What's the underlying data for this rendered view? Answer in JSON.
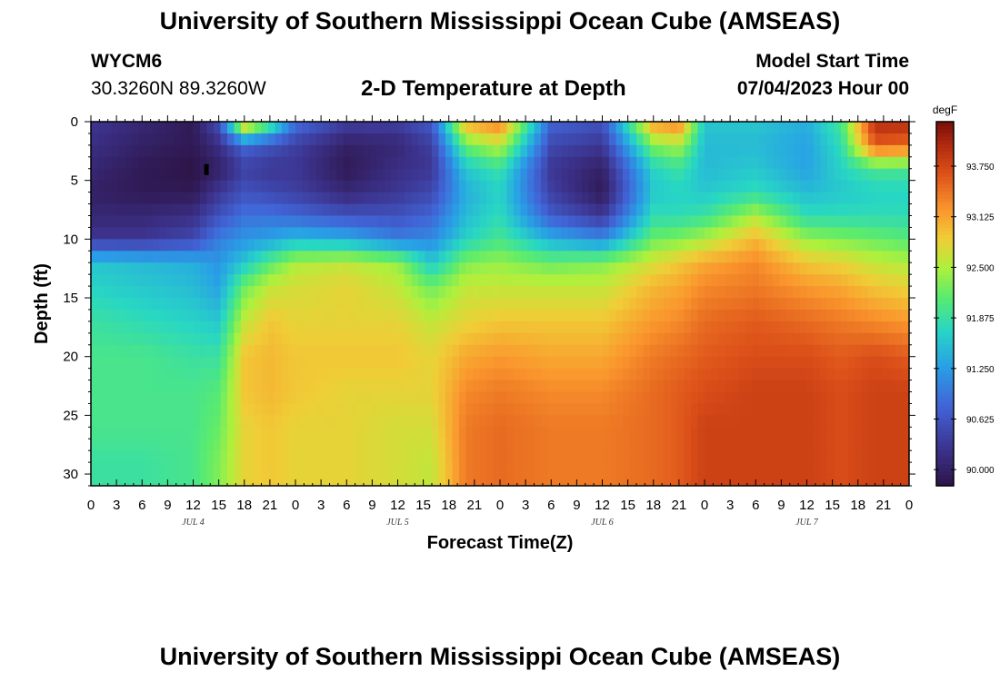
{
  "header": {
    "title": "University of Southern Mississippi Ocean Cube (AMSEAS)",
    "station": "WYCM6",
    "coords": "30.3260N  89.3260W",
    "plot_title": "2-D Temperature at Depth",
    "model_start_label": "Model Start Time",
    "model_start_value": "07/04/2023 Hour 00"
  },
  "footer": {
    "title": "University of Southern Mississippi Ocean Cube (AMSEAS)"
  },
  "colors": {
    "background": "#ffffff",
    "frame": "#000000"
  },
  "chart_data": {
    "type": "heatmap",
    "xlabel": "Forecast Time(Z)",
    "ylabel": "Depth (ft)",
    "x_ticks": [
      "0",
      "3",
      "6",
      "9",
      "12",
      "15",
      "18",
      "21",
      "0",
      "3",
      "6",
      "9",
      "12",
      "15",
      "18",
      "21",
      "0",
      "3",
      "6",
      "9",
      "12",
      "15",
      "18",
      "21",
      "0",
      "3",
      "6",
      "9",
      "12",
      "15",
      "18",
      "21",
      "0"
    ],
    "x_range_hours": [
      0,
      96
    ],
    "day_labels": [
      {
        "label": "JUL 4",
        "hour": 12
      },
      {
        "label": "JUL 5",
        "hour": 36
      },
      {
        "label": "JUL 6",
        "hour": 60
      },
      {
        "label": "JUL 7",
        "hour": 84
      }
    ],
    "y_ticks": [
      "0",
      "5",
      "10",
      "15",
      "20",
      "25",
      "30"
    ],
    "y_range_ft": [
      0,
      31
    ],
    "y_inverted": true,
    "colorbar": {
      "unit": "degF",
      "ticks": [
        "93.750",
        "93.125",
        "92.500",
        "91.875",
        "91.250",
        "90.625",
        "90.000"
      ],
      "tick_values": [
        93.75,
        93.125,
        92.5,
        91.875,
        91.25,
        90.625,
        90.0
      ],
      "range": [
        89.8,
        94.3
      ]
    },
    "grid_hours": [
      0,
      6,
      12,
      15,
      18,
      21,
      24,
      30,
      36,
      40,
      44,
      48,
      54,
      60,
      66,
      69,
      72,
      78,
      84,
      88,
      92,
      96
    ],
    "grid_depths_ft": [
      0,
      2,
      4,
      6,
      8,
      10,
      12,
      14,
      17,
      20,
      23,
      26,
      29,
      31
    ],
    "columns": [
      [
        90.3,
        90.2,
        90.1,
        90.0,
        90.1,
        90.3,
        91.6,
        91.7,
        91.9,
        92.0,
        92.0,
        92.0,
        91.9,
        91.9
      ],
      [
        90.1,
        90.0,
        89.9,
        89.9,
        90.1,
        90.3,
        91.5,
        91.6,
        91.8,
        92.0,
        92.0,
        92.0,
        91.9,
        91.9
      ],
      [
        89.9,
        89.9,
        89.8,
        89.9,
        90.2,
        90.5,
        91.4,
        91.5,
        91.7,
        91.9,
        92.0,
        92.0,
        92.0,
        92.0
      ],
      [
        90.6,
        90.2,
        90.0,
        90.3,
        90.6,
        91.0,
        91.2,
        91.3,
        91.6,
        91.9,
        92.1,
        92.2,
        92.3,
        92.3
      ],
      [
        93.2,
        90.8,
        90.4,
        90.6,
        90.9,
        91.2,
        91.6,
        92.2,
        92.6,
        92.9,
        92.9,
        92.8,
        92.8,
        92.8
      ],
      [
        92.2,
        90.6,
        90.3,
        90.5,
        90.9,
        91.3,
        92.1,
        92.6,
        92.9,
        93.0,
        93.0,
        92.9,
        92.9,
        92.9
      ],
      [
        90.9,
        90.4,
        90.3,
        90.4,
        90.8,
        91.5,
        92.5,
        92.7,
        92.8,
        92.9,
        92.9,
        92.8,
        92.8,
        92.8
      ],
      [
        90.4,
        90.0,
        89.9,
        90.1,
        90.6,
        91.4,
        92.6,
        92.8,
        92.8,
        92.9,
        92.8,
        92.8,
        92.8,
        92.8
      ],
      [
        90.4,
        90.1,
        90.2,
        90.3,
        90.6,
        91.0,
        92.4,
        92.6,
        92.8,
        92.9,
        92.8,
        92.7,
        92.7,
        92.7
      ],
      [
        90.7,
        90.4,
        90.3,
        90.5,
        90.8,
        91.1,
        91.6,
        92.2,
        92.6,
        92.8,
        92.8,
        92.7,
        92.6,
        92.6
      ],
      [
        93.1,
        92.2,
        91.6,
        91.4,
        91.5,
        91.7,
        92.3,
        92.6,
        92.8,
        93.1,
        93.3,
        93.4,
        93.4,
        93.4
      ],
      [
        93.4,
        92.6,
        91.9,
        91.7,
        91.8,
        92.0,
        92.4,
        92.6,
        92.9,
        93.2,
        93.4,
        93.5,
        93.5,
        93.5
      ],
      [
        90.8,
        90.5,
        90.3,
        90.4,
        90.7,
        91.4,
        92.2,
        92.6,
        92.9,
        93.1,
        93.3,
        93.4,
        93.4,
        93.4
      ],
      [
        90.6,
        90.3,
        90.0,
        89.9,
        90.3,
        91.1,
        92.3,
        92.6,
        92.9,
        93.1,
        93.3,
        93.4,
        93.4,
        93.4
      ],
      [
        93.2,
        92.3,
        91.7,
        91.6,
        91.8,
        92.2,
        92.7,
        93.0,
        93.2,
        93.4,
        93.5,
        93.5,
        93.5,
        93.5
      ],
      [
        93.4,
        92.5,
        91.9,
        91.7,
        91.8,
        92.3,
        92.9,
        93.1,
        93.3,
        93.5,
        93.6,
        93.6,
        93.6,
        93.6
      ],
      [
        91.6,
        91.5,
        91.5,
        91.6,
        91.9,
        92.5,
        93.1,
        93.3,
        93.5,
        93.6,
        93.7,
        93.8,
        93.8,
        93.8
      ],
      [
        91.6,
        91.5,
        91.6,
        91.8,
        92.5,
        93.0,
        93.3,
        93.4,
        93.6,
        93.7,
        93.8,
        93.8,
        93.8,
        93.8
      ],
      [
        91.4,
        91.3,
        91.3,
        91.5,
        91.8,
        92.4,
        92.9,
        93.2,
        93.5,
        93.7,
        93.8,
        93.8,
        93.8,
        93.8
      ],
      [
        92.0,
        91.8,
        91.7,
        91.6,
        91.8,
        92.3,
        92.8,
        93.1,
        93.4,
        93.6,
        93.7,
        93.7,
        93.7,
        93.7
      ],
      [
        94.0,
        93.6,
        92.0,
        91.7,
        91.8,
        92.2,
        92.6,
        92.9,
        93.3,
        93.7,
        93.8,
        93.8,
        93.8,
        93.8
      ],
      [
        94.0,
        93.5,
        92.0,
        91.7,
        91.8,
        92.1,
        92.5,
        92.8,
        93.2,
        93.6,
        93.8,
        93.8,
        93.8,
        93.8
      ]
    ],
    "marker": {
      "hour": 13.5,
      "depth_ft": 4
    }
  }
}
